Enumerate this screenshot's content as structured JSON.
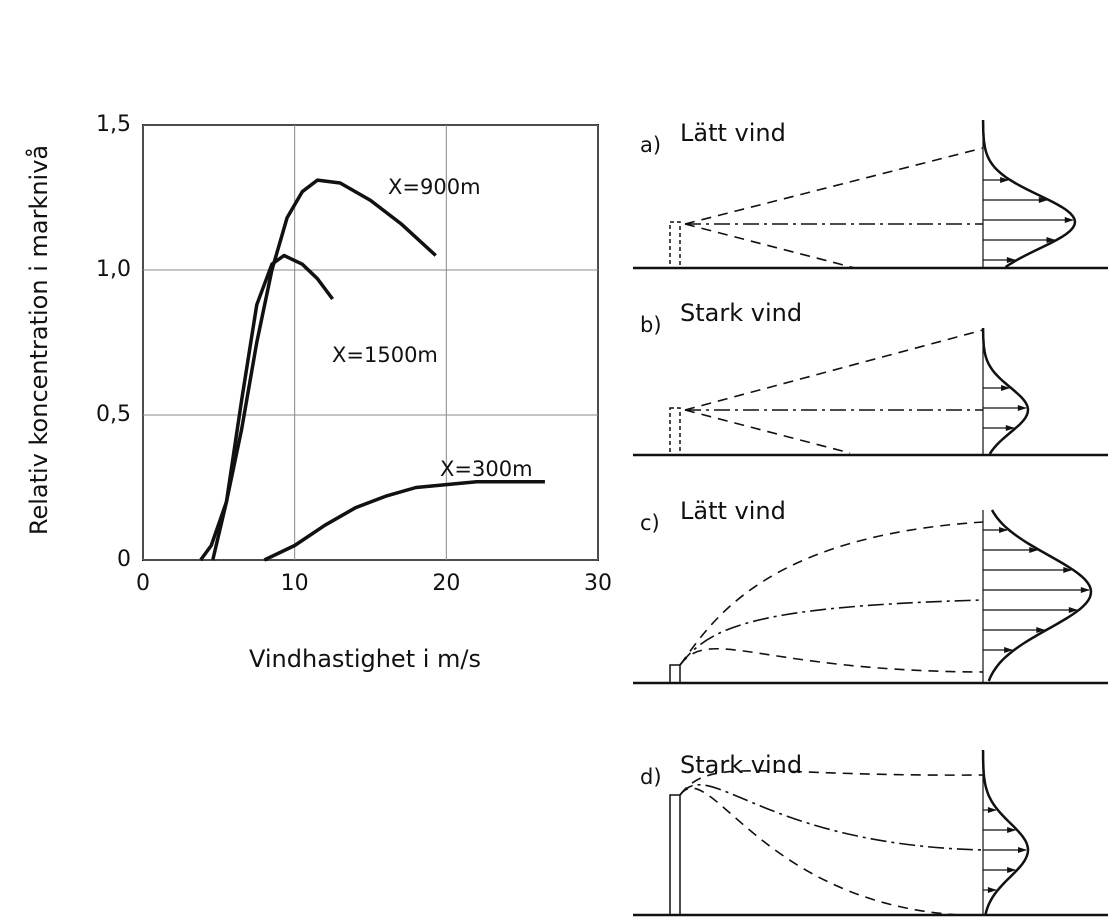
{
  "chart_data": {
    "type": "line",
    "x_label": "Vindhastighet i m/s",
    "y_label": "Relativ koncentration i marknivå",
    "xlim": [
      0,
      30
    ],
    "xticks": [
      0,
      10,
      20,
      30
    ],
    "ylim": [
      0,
      1.5
    ],
    "yticks": [
      0,
      {
        "value": 0.5,
        "label": "0,5"
      },
      {
        "value": 1.0,
        "label": "1,0"
      },
      {
        "value": 1.5,
        "label": "1,5"
      }
    ],
    "grid": true,
    "series": [
      {
        "name": "X=900m",
        "color": "#111111",
        "x": [
          3.8,
          4.5,
          5.5,
          6.5,
          7.5,
          8.5,
          9.5,
          10.5,
          11.5,
          13,
          15,
          17,
          19.3
        ],
        "values": [
          0,
          0.05,
          0.2,
          0.45,
          0.75,
          1.0,
          1.18,
          1.27,
          1.31,
          1.3,
          1.24,
          1.16,
          1.05
        ]
      },
      {
        "name": "X=1500m",
        "color": "#111111",
        "x": [
          4.6,
          5.5,
          6.5,
          7.5,
          8.5,
          9.3,
          10.5,
          11.5,
          12.5
        ],
        "values": [
          0,
          0.2,
          0.55,
          0.88,
          1.02,
          1.05,
          1.02,
          0.97,
          0.9
        ]
      },
      {
        "name": "X=300m",
        "color": "#111111",
        "x": [
          8,
          10,
          12,
          14,
          16,
          18,
          20,
          22,
          24,
          26.5
        ],
        "values": [
          0,
          0.05,
          0.12,
          0.18,
          0.22,
          0.25,
          0.26,
          0.27,
          0.27,
          0.27
        ]
      }
    ]
  },
  "panels": [
    {
      "letter": "a)",
      "title": "Lätt vind"
    },
    {
      "letter": "b)",
      "title": "Stark vind"
    },
    {
      "letter": "c)",
      "title": "Lätt vind"
    },
    {
      "letter": "d)",
      "title": "Stark vind"
    }
  ]
}
